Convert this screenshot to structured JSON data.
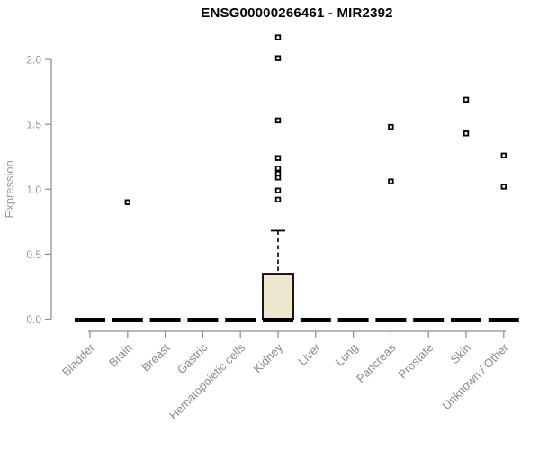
{
  "title": "ENSG00000266461 - MIR2392",
  "chart_data": {
    "type": "boxplot",
    "title": "ENSG00000266461 - MIR2392",
    "xlabel": "",
    "ylabel": "Expression",
    "ylim": [
      0.0,
      2.2
    ],
    "yticks": [
      "0.0",
      "0.5",
      "1.0",
      "1.5",
      "2.0"
    ],
    "grid": false,
    "legend": "none",
    "categories": [
      "Bladder",
      "Brain",
      "Breast",
      "Gastric",
      "Hematopoietic cells",
      "Kidney",
      "Liver",
      "Lung",
      "Pancreas",
      "Prostate",
      "Skin",
      "Unknown / Other"
    ],
    "boxes": [
      {
        "category": "Bladder",
        "median": 0,
        "q1": 0,
        "q3": 0,
        "whisker_low": 0,
        "whisker_high": 0,
        "outliers": []
      },
      {
        "category": "Brain",
        "median": 0,
        "q1": 0,
        "q3": 0,
        "whisker_low": 0,
        "whisker_high": 0,
        "outliers": [
          0.9
        ]
      },
      {
        "category": "Breast",
        "median": 0,
        "q1": 0,
        "q3": 0,
        "whisker_low": 0,
        "whisker_high": 0,
        "outliers": []
      },
      {
        "category": "Gastric",
        "median": 0,
        "q1": 0,
        "q3": 0,
        "whisker_low": 0,
        "whisker_high": 0,
        "outliers": []
      },
      {
        "category": "Hematopoietic cells",
        "median": 0,
        "q1": 0,
        "q3": 0,
        "whisker_low": 0,
        "whisker_high": 0,
        "outliers": []
      },
      {
        "category": "Kidney",
        "median": 0,
        "q1": 0,
        "q3": 0.35,
        "whisker_low": 0,
        "whisker_high": 0.68,
        "outliers": [
          0.92,
          0.99,
          1.09,
          1.12,
          1.16,
          1.24,
          1.53,
          2.01,
          2.17
        ]
      },
      {
        "category": "Liver",
        "median": 0,
        "q1": 0,
        "q3": 0,
        "whisker_low": 0,
        "whisker_high": 0,
        "outliers": []
      },
      {
        "category": "Lung",
        "median": 0,
        "q1": 0,
        "q3": 0,
        "whisker_low": 0,
        "whisker_high": 0,
        "outliers": []
      },
      {
        "category": "Pancreas",
        "median": 0,
        "q1": 0,
        "q3": 0,
        "whisker_low": 0,
        "whisker_high": 0,
        "outliers": [
          1.06,
          1.48
        ]
      },
      {
        "category": "Prostate",
        "median": 0,
        "q1": 0,
        "q3": 0,
        "whisker_low": 0,
        "whisker_high": 0,
        "outliers": []
      },
      {
        "category": "Skin",
        "median": 0,
        "q1": 0,
        "q3": 0,
        "whisker_low": 0,
        "whisker_high": 0,
        "outliers": [
          1.43,
          1.69
        ]
      },
      {
        "category": "Unknown / Other",
        "median": 0,
        "q1": 0,
        "q3": 0,
        "whisker_low": 0,
        "whisker_high": 0,
        "outliers": [
          1.02,
          1.26
        ]
      }
    ],
    "colors": {
      "box_fill": "#EDE7CE",
      "box_border": "#000000",
      "median_bar": "#000000",
      "outlier_stroke": "#000000",
      "outlier_fill": "#FFFFFF",
      "axis": "#8A8A8A",
      "tick_label": "#9A9A9A",
      "x_label": "#8A8A8A",
      "axis_title": "#9A9A9A",
      "title": "#000000",
      "background": "#FFFFFF"
    }
  }
}
